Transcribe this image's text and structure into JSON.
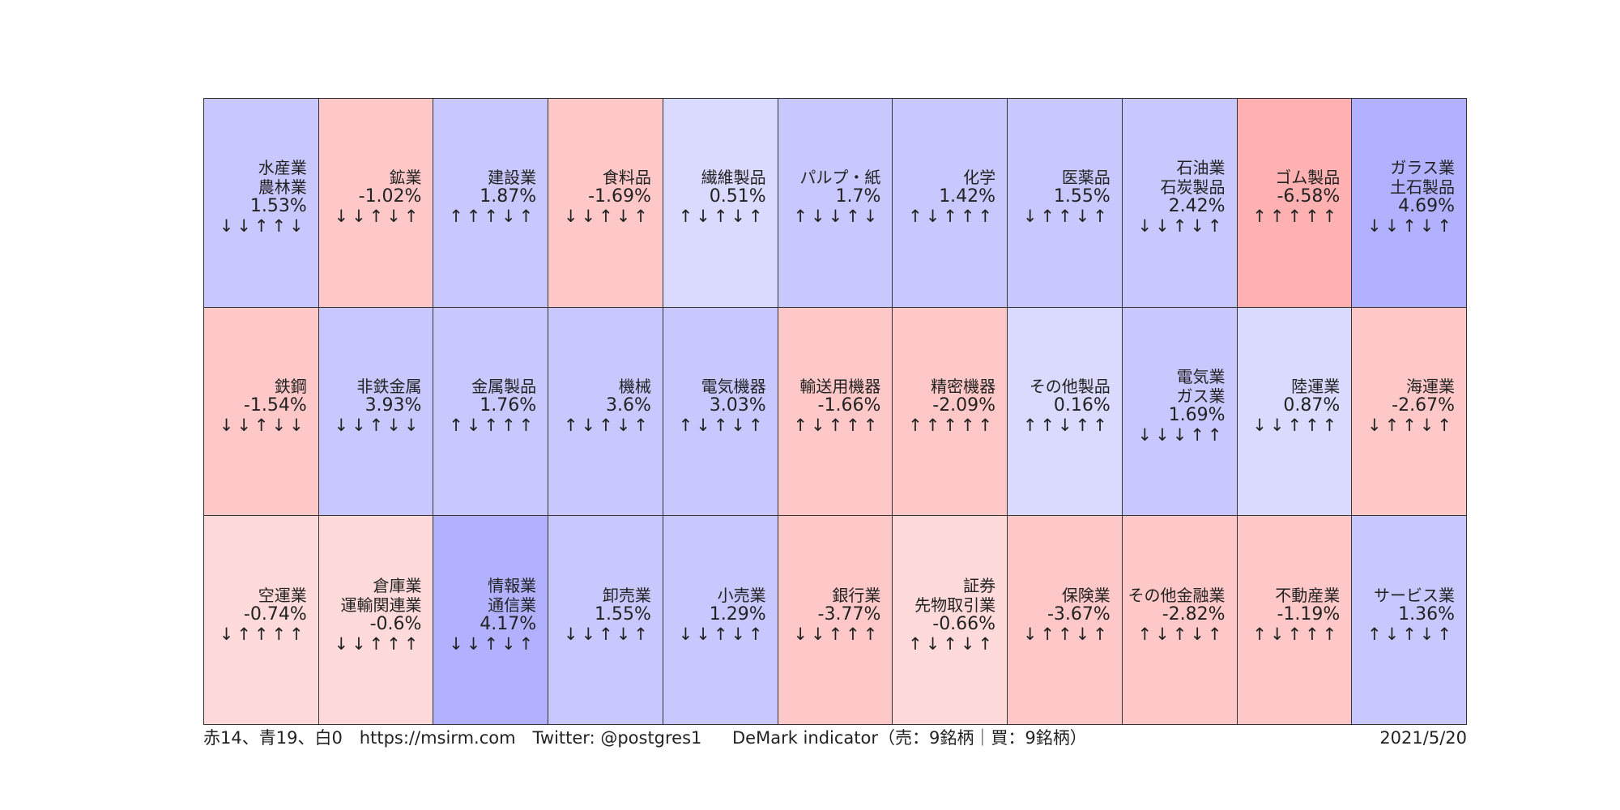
{
  "chart_data": {
    "type": "heatmap",
    "title": "",
    "columns": 11,
    "rows": 3,
    "colors": {
      "positive_strong": "#b1b1ff",
      "positive_mid": "#c8c8ff",
      "positive_light": "#dadaff",
      "negative_strong": "#ffb1b1",
      "negative_mid": "#ffc8c8",
      "negative_light": "#ffdada"
    },
    "cells": [
      {
        "name_lines": [
          "水産業",
          "農林業"
        ],
        "change": "1.53%",
        "arrows": "↓↓↑↑↓",
        "color": "#c8c8ff"
      },
      {
        "name_lines": [
          "鉱業"
        ],
        "change": "-1.02%",
        "arrows": "↓↓↑↓↑",
        "color": "#ffc8c8"
      },
      {
        "name_lines": [
          "建設業"
        ],
        "change": "1.87%",
        "arrows": "↑↑↑↓↑",
        "color": "#c8c8ff"
      },
      {
        "name_lines": [
          "食料品"
        ],
        "change": "-1.69%",
        "arrows": "↓↓↑↓↑",
        "color": "#ffc8c8"
      },
      {
        "name_lines": [
          "繊維製品"
        ],
        "change": "0.51%",
        "arrows": "↑↓↑↓↑",
        "color": "#dadaff"
      },
      {
        "name_lines": [
          "パルプ・紙"
        ],
        "change": "1.7%",
        "arrows": "↑↓↓↑↓",
        "color": "#c8c8ff"
      },
      {
        "name_lines": [
          "化学"
        ],
        "change": "1.42%",
        "arrows": "↑↓↑↑↑",
        "color": "#c8c8ff"
      },
      {
        "name_lines": [
          "医薬品"
        ],
        "change": "1.55%",
        "arrows": "↓↑↑↓↑",
        "color": "#c8c8ff"
      },
      {
        "name_lines": [
          "石油業",
          "石炭製品"
        ],
        "change": "2.42%",
        "arrows": "↓↓↑↓↑",
        "color": "#c8c8ff"
      },
      {
        "name_lines": [
          "ゴム製品"
        ],
        "change": "-6.58%",
        "arrows": "↑↑↑↑↑",
        "color": "#ffb1b1"
      },
      {
        "name_lines": [
          "ガラス業",
          "土石製品"
        ],
        "change": "4.69%",
        "arrows": "↓↓↑↓↑",
        "color": "#b1b1ff"
      },
      {
        "name_lines": [
          "鉄鋼"
        ],
        "change": "-1.54%",
        "arrows": "↓↓↑↓↓",
        "color": "#ffc8c8"
      },
      {
        "name_lines": [
          "非鉄金属"
        ],
        "change": "3.93%",
        "arrows": "↓↓↑↓↓",
        "color": "#c8c8ff"
      },
      {
        "name_lines": [
          "金属製品"
        ],
        "change": "1.76%",
        "arrows": "↑↓↑↑↑",
        "color": "#c8c8ff"
      },
      {
        "name_lines": [
          "機械"
        ],
        "change": "3.6%",
        "arrows": "↑↓↑↓↑",
        "color": "#c8c8ff"
      },
      {
        "name_lines": [
          "電気機器"
        ],
        "change": "3.03%",
        "arrows": "↑↓↑↓↑",
        "color": "#c8c8ff"
      },
      {
        "name_lines": [
          "輸送用機器"
        ],
        "change": "-1.66%",
        "arrows": "↑↓↑↑↑",
        "color": "#ffc8c8"
      },
      {
        "name_lines": [
          "精密機器"
        ],
        "change": "-2.09%",
        "arrows": "↑↑↑↑↑",
        "color": "#ffc8c8"
      },
      {
        "name_lines": [
          "その他製品"
        ],
        "change": "0.16%",
        "arrows": "↑↑↓↑↑",
        "color": "#dadaff"
      },
      {
        "name_lines": [
          "電気業",
          "ガス業"
        ],
        "change": "1.69%",
        "arrows": "↓↓↓↑↑",
        "color": "#c8c8ff"
      },
      {
        "name_lines": [
          "陸運業"
        ],
        "change": "0.87%",
        "arrows": "↓↓↑↑↑",
        "color": "#dadaff"
      },
      {
        "name_lines": [
          "海運業"
        ],
        "change": "-2.67%",
        "arrows": "↓↑↑↓↑",
        "color": "#ffc8c8"
      },
      {
        "name_lines": [
          "空運業"
        ],
        "change": "-0.74%",
        "arrows": "↓↑↑↑↑",
        "color": "#ffdada"
      },
      {
        "name_lines": [
          "倉庫業",
          "運輸関連業"
        ],
        "change": "-0.6%",
        "arrows": "↓↓↑↑↑",
        "color": "#ffdada"
      },
      {
        "name_lines": [
          "情報業",
          "通信業"
        ],
        "change": "4.17%",
        "arrows": "↓↓↑↓↑",
        "color": "#b1b1ff"
      },
      {
        "name_lines": [
          "卸売業"
        ],
        "change": "1.55%",
        "arrows": "↓↓↑↓↑",
        "color": "#c8c8ff"
      },
      {
        "name_lines": [
          "小売業"
        ],
        "change": "1.29%",
        "arrows": "↓↓↑↓↑",
        "color": "#c8c8ff"
      },
      {
        "name_lines": [
          "銀行業"
        ],
        "change": "-3.77%",
        "arrows": "↓↓↑↑↑",
        "color": "#ffc8c8"
      },
      {
        "name_lines": [
          "証券",
          "先物取引業"
        ],
        "change": "-0.66%",
        "arrows": "↑↓↑↓↑",
        "color": "#ffdada"
      },
      {
        "name_lines": [
          "保険業"
        ],
        "change": "-3.67%",
        "arrows": "↓↑↑↓↑",
        "color": "#ffc8c8"
      },
      {
        "name_lines": [
          "その他金融業"
        ],
        "change": "-2.82%",
        "arrows": "↑↓↑↓↑",
        "color": "#ffc8c8"
      },
      {
        "name_lines": [
          "不動産業"
        ],
        "change": "-1.19%",
        "arrows": "↑↓↑↑↑",
        "color": "#ffc8c8"
      },
      {
        "name_lines": [
          "サービス業"
        ],
        "change": "1.36%",
        "arrows": "↑↓↑↓↑",
        "color": "#c8c8ff"
      }
    ]
  },
  "footer": {
    "summary": "赤14、青19、白0　https://msirm.com　Twitter: @postgres1",
    "indicator": "DeMark indicator（売：9銘柄｜買：9銘柄）",
    "date": "2021/5/20"
  }
}
